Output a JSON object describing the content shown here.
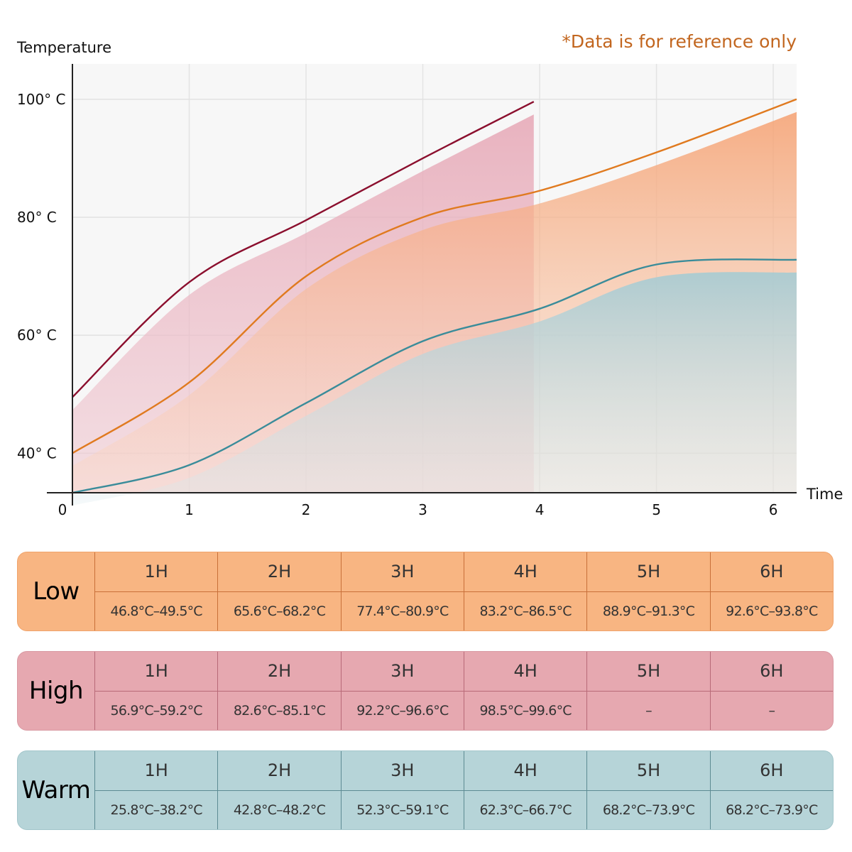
{
  "chart_data": {
    "type": "area",
    "title": "",
    "note": "*Data is for reference only",
    "ylabel": "Temperature",
    "xlabel": "Time",
    "x_ticks": [
      "0",
      "1",
      "2",
      "3",
      "4",
      "5",
      "6"
    ],
    "y_ticks": [
      {
        "value": 40,
        "label": "40° C"
      },
      {
        "value": 60,
        "label": "60° C"
      },
      {
        "value": 80,
        "label": "80° C"
      },
      {
        "value": 100,
        "label": "100° C"
      }
    ],
    "xlim": [
      0,
      6.2
    ],
    "ylim": [
      33.3,
      106
    ],
    "grid": true,
    "series": [
      {
        "name": "High",
        "color": "#8b0f2e",
        "fill": "#e8b4c0",
        "x": [
          0,
          1,
          2,
          3,
          3.95
        ],
        "values": [
          49.5,
          69,
          79.5,
          90,
          99.6
        ]
      },
      {
        "name": "Low",
        "color": "#e07a1f",
        "fill": "#f6a875",
        "x": [
          0,
          1,
          2,
          3,
          4,
          5,
          6.2
        ],
        "values": [
          40,
          52,
          70,
          80,
          84.5,
          91,
          100
        ]
      },
      {
        "name": "Warm",
        "color": "#3a8c9a",
        "fill": "#a9cdd5",
        "x": [
          0,
          1,
          2,
          3,
          4,
          5,
          6.2
        ],
        "values": [
          33.3,
          38,
          48.5,
          59,
          64.5,
          72,
          72.8
        ]
      }
    ]
  },
  "tables": [
    {
      "mode": "Low",
      "cells": [
        {
          "hour": "1H",
          "range": "46.8°C–49.5°C"
        },
        {
          "hour": "2H",
          "range": "65.6°C–68.2°C"
        },
        {
          "hour": "3H",
          "range": "77.4°C–80.9°C"
        },
        {
          "hour": "4H",
          "range": "83.2°C–86.5°C"
        },
        {
          "hour": "5H",
          "range": "88.9°C–91.3°C"
        },
        {
          "hour": "6H",
          "range": "92.6°C–93.8°C"
        }
      ]
    },
    {
      "mode": "High",
      "cells": [
        {
          "hour": "1H",
          "range": "56.9°C–59.2°C"
        },
        {
          "hour": "2H",
          "range": "82.6°C–85.1°C"
        },
        {
          "hour": "3H",
          "range": "92.2°C–96.6°C"
        },
        {
          "hour": "4H",
          "range": "98.5°C–99.6°C"
        },
        {
          "hour": "5H",
          "range": "–"
        },
        {
          "hour": "6H",
          "range": "–"
        }
      ]
    },
    {
      "mode": "Warm",
      "cells": [
        {
          "hour": "1H",
          "range": "25.8°C–38.2°C"
        },
        {
          "hour": "2H",
          "range": "42.8°C–48.2°C"
        },
        {
          "hour": "3H",
          "range": "52.3°C–59.1°C"
        },
        {
          "hour": "4H",
          "range": "62.3°C–66.7°C"
        },
        {
          "hour": "5H",
          "range": "68.2°C–73.9°C"
        },
        {
          "hour": "6H",
          "range": "68.2°C–73.9°C"
        }
      ]
    }
  ]
}
